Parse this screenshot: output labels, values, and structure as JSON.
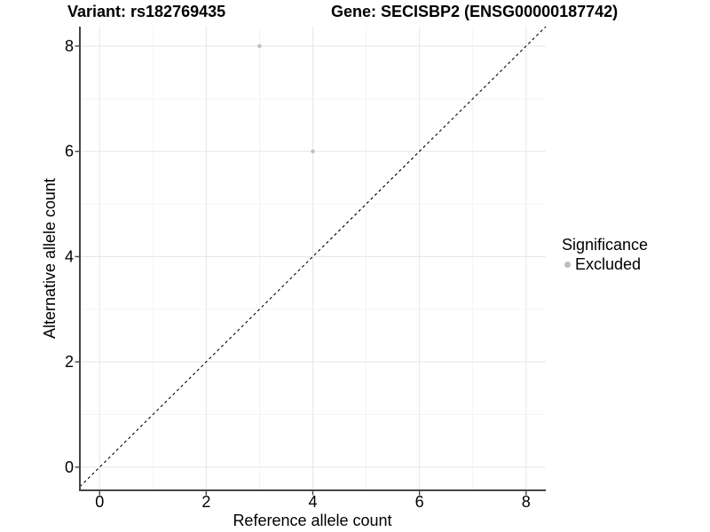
{
  "header": {
    "title_left": "Variant: rs182769435",
    "title_right": "Gene: SECISBP2 (ENSG00000187742)"
  },
  "chart_data": {
    "type": "scatter",
    "title_left": "Variant: rs182769435",
    "title_right": "Gene: SECISBP2 (ENSG00000187742)",
    "xlabel": "Reference allele count",
    "ylabel": "Alternative allele count",
    "xlim": [
      -0.37,
      8.37
    ],
    "ylim": [
      -0.44,
      8.37
    ],
    "xticks": [
      0,
      2,
      4,
      6,
      8
    ],
    "yticks": [
      0,
      2,
      4,
      6,
      8
    ],
    "minor_xticks": [
      1,
      3,
      5,
      7
    ],
    "minor_yticks": [
      1,
      3,
      5,
      7
    ],
    "grid": true,
    "identity_line": {
      "slope": 1,
      "intercept": 0,
      "style": "dashed",
      "color": "#000000"
    },
    "series": [
      {
        "name": "Excluded",
        "color": "#bebebe",
        "points": [
          {
            "x": 3,
            "y": 8
          },
          {
            "x": 4,
            "y": 6
          }
        ]
      }
    ],
    "legend": {
      "title": "Significance",
      "position": "right",
      "entries": [
        {
          "label": "Excluded",
          "color": "#bebebe"
        }
      ]
    },
    "colors": {
      "axis_line": "#464646",
      "tick_mark": "#464646",
      "major_grid": "#e8e8e8",
      "minor_grid": "#f3f3f3",
      "text": "#000000",
      "point": "#bebebe"
    }
  }
}
